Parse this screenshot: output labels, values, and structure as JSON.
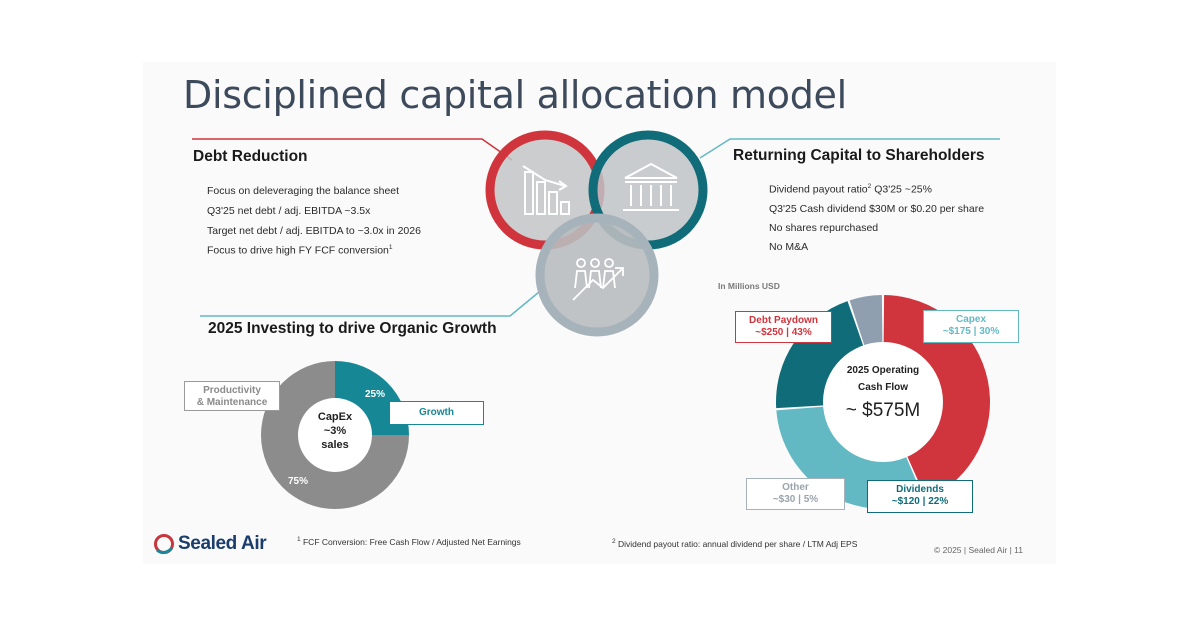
{
  "title": "Disciplined capital allocation model",
  "debt": {
    "heading": "Debt Reduction",
    "bullets": [
      "Focus on deleveraging the balance sheet",
      "Q3'25 net debt / adj. EBITDA ~3.5x",
      "Target net debt / adj. EBITDA to ~3.0x in 2026",
      "Focus to drive high FY FCF conversion"
    ],
    "bullet4_sup": "1"
  },
  "returning": {
    "heading": "Returning Capital to Shareholders",
    "bullet1_a": "Dividend payout ratio",
    "bullet1_sup": "2",
    "bullet1_b": " Q3'25 ~25%",
    "bullets": [
      "Q3'25 Cash dividend $30M or $0.20 per share",
      "No shares repurchased",
      "No M&A"
    ]
  },
  "investing": {
    "heading": "2025 Investing to drive Organic Growth",
    "center": [
      "CapEx",
      "~3%",
      "sales"
    ],
    "label_productivity": [
      "Productivity",
      "& Maintenance"
    ],
    "label_growth": "Growth",
    "pct_growth": "25%",
    "pct_maintenance": "75%"
  },
  "ocf": {
    "unit": "In Millions USD",
    "center_line1": "2025 Operating",
    "center_line2": "Cash Flow",
    "center_value": "~ $575M",
    "labels": {
      "debt": [
        "Debt Paydown",
        "~$250 | 43%"
      ],
      "capex": [
        "Capex",
        "~$175 | 30%"
      ],
      "dividends": [
        "Dividends",
        "~$120 | 22%"
      ],
      "other": [
        "Other",
        "~$30 | 5%"
      ]
    }
  },
  "footer": {
    "logo": "Sealed Air",
    "note1_sup": "1",
    "note1": " FCF Conversion: Free Cash Flow / Adjusted Net Earnings",
    "note2_sup": "2",
    "note2": " Dividend payout ratio: annual dividend per share / LTM Adj EPS",
    "copyright": "© 2025 | Sealed Air | 11"
  },
  "colors": {
    "red": "#d0343c",
    "teal": "#63b9c3",
    "dark_teal": "#0f6c78",
    "growth_teal": "#168795",
    "gray": "#8c8c8c",
    "slate": "#8f9fb0"
  },
  "chart_data": [
    {
      "type": "pie",
      "variant": "donut",
      "categories": [
        "Growth",
        "Productivity & Maintenance"
      ],
      "values": [
        25,
        75
      ],
      "colors": [
        "#168795",
        "#8c8c8c"
      ]
    },
    {
      "type": "pie",
      "variant": "donut",
      "categories": [
        "Debt Paydown",
        "Capex",
        "Dividends",
        "Other"
      ],
      "values": [
        250,
        175,
        120,
        30
      ],
      "percents": [
        43,
        30,
        22,
        5
      ],
      "colors": [
        "#d0343c",
        "#63b9c3",
        "#0f6c78",
        "#8f9fb0"
      ]
    }
  ]
}
